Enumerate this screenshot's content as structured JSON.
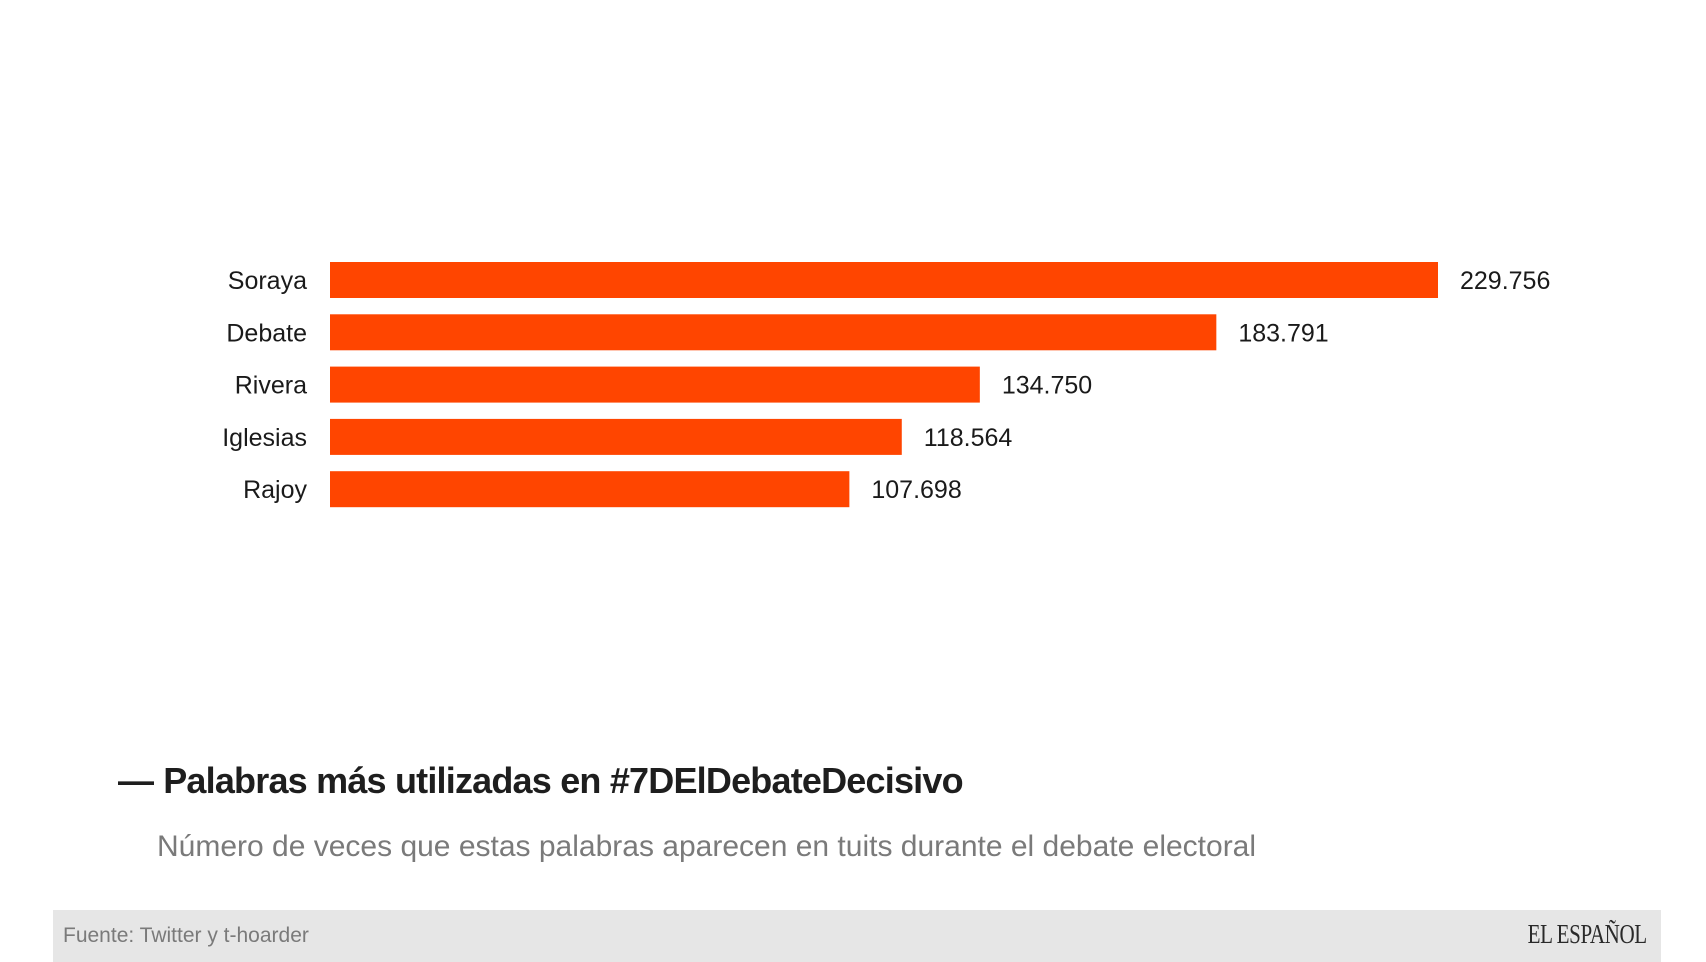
{
  "chart_data": {
    "type": "bar",
    "orientation": "horizontal",
    "title": "Palabras más utilizadas en #7DElDebateDecisivo",
    "subtitle": "Número de veces que estas palabras aparecen en tuits durante el debate electoral",
    "categories": [
      "Soraya",
      "Debate",
      "Rivera",
      "Iglesias",
      "Rajoy"
    ],
    "values": [
      229756,
      183791,
      134750,
      118564,
      107698
    ],
    "value_labels": [
      "229.756",
      "183.791",
      "134.750",
      "118.564",
      "107.698"
    ],
    "xlabel": "",
    "ylabel": "",
    "xlim": [
      0,
      229756
    ],
    "grid": false,
    "legend": "none",
    "bar_color": "#ff4500"
  },
  "header": {
    "title_dash": "—",
    "title": "Palabras más utilizadas en #7DElDebateDecisivo",
    "subtitle": "Número de veces que estas palabras aparecen en tuits durante el debate electoral"
  },
  "footer": {
    "source": "Fuente: Twitter y t-hoarder",
    "logo": "EL ESPAÑOL"
  }
}
